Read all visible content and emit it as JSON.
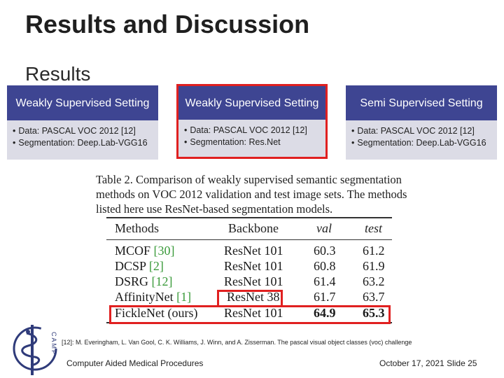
{
  "slide": {
    "title": "Results and Discussion",
    "subtitle": "Results"
  },
  "boxes": [
    {
      "heading": "Weakly Supervised Setting",
      "bullets": [
        "Data: PASCAL VOC 2012 [12]",
        "Segmentation: Deep.Lab-VGG16"
      ]
    },
    {
      "heading": "Weakly Supervised Setting",
      "bullets": [
        "Data: PASCAL VOC 2012 [12]",
        "Segmentation: Res.Net"
      ]
    },
    {
      "heading": "Semi Supervised Setting",
      "bullets": [
        "Data: PASCAL VOC 2012 [12]",
        "Segmentation: Deep.Lab-VGG16"
      ]
    }
  ],
  "table_caption": {
    "label": "Table 2.",
    "text": "Comparison of weakly supervised semantic segmentation methods on VOC 2012 validation and test image sets. The methods listed here use ResNet-based segmentation models."
  },
  "table": {
    "headers": {
      "methods": "Methods",
      "backbone": "Backbone",
      "val": "val",
      "test": "test"
    },
    "rows": [
      {
        "method": "MCOF",
        "ref": "[30]",
        "backbone": "ResNet 101",
        "val": "60.3",
        "test": "61.2"
      },
      {
        "method": "DCSP",
        "ref": "[2]",
        "backbone": "ResNet 101",
        "val": "60.8",
        "test": "61.9"
      },
      {
        "method": "DSRG",
        "ref": "[12]",
        "backbone": "ResNet 101",
        "val": "61.4",
        "test": "63.2"
      },
      {
        "method": "AffinityNet",
        "ref": "[1]",
        "backbone": "ResNet 38",
        "val": "61.7",
        "test": "63.7"
      },
      {
        "method": "FickleNet (ours)",
        "ref": "",
        "backbone": "ResNet 101",
        "val": "64.9",
        "test": "65.3"
      }
    ]
  },
  "footnote": "[12]: M. Everingham, L. Van Gool, C. K. Williams, J. Winn, and A. Zisserman. The pascal visual object classes (voc) challenge",
  "footer": {
    "left": "Computer Aided Medical Procedures",
    "right": "October 17, 2021 Slide 25"
  },
  "logo": {
    "text": "CAMP",
    "icon": "caduceus-icon"
  },
  "colors": {
    "box_header": "#3e4592",
    "box_body": "#dcdce6",
    "highlight": "#e02020",
    "ref_green": "#3a9a3a"
  }
}
